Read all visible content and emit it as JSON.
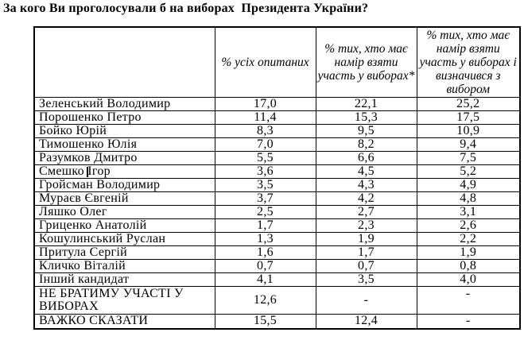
{
  "title": "За кого Ви проголосували б на виборах  Президента України?",
  "table": {
    "headers": [
      "",
      "% усіх опитаних",
      "% тих, хто має намір взяти участь у виборах*",
      "% тих, хто має намір взяти участь у виборах і визначився з вибором"
    ],
    "rows": [
      {
        "name": "Зеленський Володимир",
        "all": "17,0",
        "intend": "22,1",
        "decided": "25,2"
      },
      {
        "name": "Порошенко Петро",
        "all": "11,4",
        "intend": "15,3",
        "decided": "17,5"
      },
      {
        "name": "Бойко Юрій",
        "all": "8,3",
        "intend": "9,5",
        "decided": "10,9"
      },
      {
        "name": "Тимошенко Юлія",
        "all": "7,0",
        "intend": "8,2",
        "decided": "9,4"
      },
      {
        "name": "Разумков Дмитро",
        "all": "5,5",
        "intend": "6,6",
        "decided": "7,5"
      },
      {
        "name": "Смешко Ігор",
        "all": "3,6",
        "intend": "4,5",
        "decided": "5,2"
      },
      {
        "name": "Гройсман Володимир",
        "all": "3,5",
        "intend": "4,3",
        "decided": "4,9"
      },
      {
        "name": "Мураєв Євгеній",
        "all": "3,7",
        "intend": "4,2",
        "decided": "4,8"
      },
      {
        "name": "Ляшко Олег",
        "all": "2,5",
        "intend": "2,7",
        "decided": "3,1"
      },
      {
        "name": "Гриценко Анатолій",
        "all": "1,7",
        "intend": "2,3",
        "decided": "2,6"
      },
      {
        "name": "Кошулинський Руслан",
        "all": "1,3",
        "intend": "1,9",
        "decided": "2,2"
      },
      {
        "name": "Притула Сергій",
        "all": "1,6",
        "intend": "1,7",
        "decided": "1,9"
      },
      {
        "name": "Кличко Віталій",
        "all": "0,7",
        "intend": "0,7",
        "decided": "0,8"
      },
      {
        "name": "Інший кандидат",
        "all": "4,1",
        "intend": "3,5",
        "decided": "4,0"
      },
      {
        "name": "НЕ БРАТИМУ УЧАСТІ У ВИБОРАХ",
        "all": "12,6",
        "intend": "-",
        "decided": "-"
      },
      {
        "name": "ВАЖКО СКАЗАТИ",
        "all": "15,5",
        "intend": "12,4",
        "decided": "-"
      }
    ]
  }
}
